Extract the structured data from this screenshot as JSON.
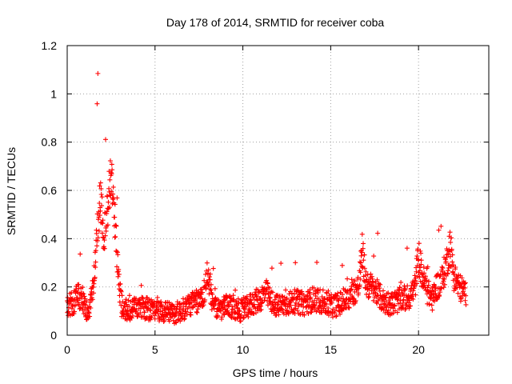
{
  "chart_data": {
    "type": "scatter",
    "title": "Day 178 of 2014, SRMTID for receiver coba",
    "xlabel": "GPS time / hours",
    "ylabel": "SRMTID / TECUs",
    "xlim": [
      0,
      24
    ],
    "ylim": [
      0,
      1.2
    ],
    "xticks": [
      0,
      5,
      10,
      15,
      20
    ],
    "xtick_labels": [
      "0",
      "5",
      "10",
      "15",
      "20"
    ],
    "yticks": [
      0,
      0.2,
      0.4,
      0.6,
      0.8,
      1.0,
      1.2
    ],
    "ytick_labels": [
      "0",
      "0.2",
      "0.4",
      "0.6",
      "0.8",
      "1",
      "1.2"
    ],
    "grid": true,
    "marker": "+",
    "color": "#ff0000",
    "series": [
      {
        "name": "SRMTID",
        "profile": {
          "x": [
            0.0,
            0.3,
            0.6,
            0.9,
            1.2,
            1.5,
            1.7,
            1.9,
            2.1,
            2.3,
            2.5,
            2.7,
            2.9,
            3.1,
            3.5,
            4.0,
            4.5,
            5.0,
            5.5,
            6.0,
            6.5,
            7.0,
            7.5,
            7.8,
            8.0,
            8.3,
            8.7,
            9.0,
            9.5,
            10.0,
            10.5,
            11.0,
            11.3,
            11.6,
            12.0,
            12.5,
            13.0,
            13.5,
            14.0,
            14.5,
            15.0,
            15.5,
            16.0,
            16.3,
            16.6,
            16.8,
            17.0,
            17.3,
            17.6,
            18.0,
            18.5,
            19.0,
            19.5,
            19.8,
            20.0,
            20.2,
            20.5,
            20.8,
            21.0,
            21.3,
            21.6,
            21.8,
            22.0,
            22.3,
            22.6
          ],
          "y": [
            0.12,
            0.13,
            0.16,
            0.15,
            0.08,
            0.2,
            0.45,
            0.55,
            0.4,
            0.55,
            0.65,
            0.5,
            0.25,
            0.12,
            0.1,
            0.12,
            0.11,
            0.1,
            0.1,
            0.09,
            0.1,
            0.13,
            0.14,
            0.18,
            0.26,
            0.12,
            0.1,
            0.12,
            0.11,
            0.1,
            0.13,
            0.15,
            0.18,
            0.14,
            0.12,
            0.13,
            0.14,
            0.13,
            0.15,
            0.14,
            0.12,
            0.13,
            0.15,
            0.18,
            0.2,
            0.35,
            0.22,
            0.2,
            0.18,
            0.14,
            0.13,
            0.15,
            0.16,
            0.2,
            0.33,
            0.25,
            0.18,
            0.15,
            0.2,
            0.22,
            0.3,
            0.38,
            0.25,
            0.2,
            0.18
          ]
        },
        "spread": 0.055,
        "x_end": 22.7,
        "n_points": 1600
      }
    ]
  }
}
